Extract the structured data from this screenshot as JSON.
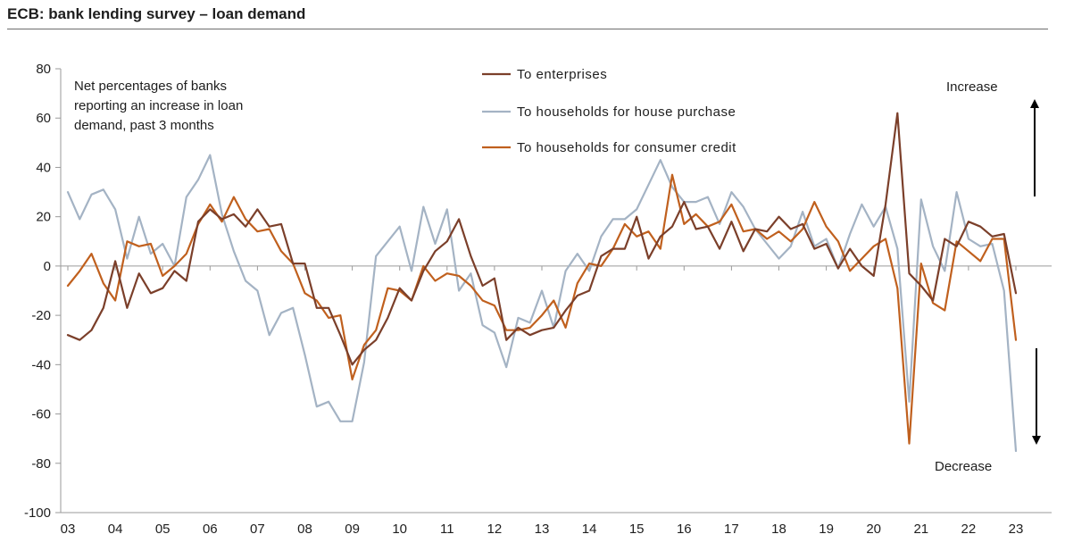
{
  "title": "ECB: bank lending survey – loan demand",
  "note_lines": [
    "Net percentages  of banks",
    "reporting  an increase  in loan",
    "demand, past 3 months"
  ],
  "increase_label": "Increase",
  "decrease_label": "Decrease",
  "colors": {
    "enterprises": "#7b3f2a",
    "house": "#a4b3c4",
    "consumer": "#c0601e",
    "axis": "#9a9a9a",
    "arrow": "#000000"
  },
  "chart_data": {
    "type": "line",
    "title": "ECB: bank lending survey – loan demand",
    "xlabel": "",
    "ylabel": "",
    "ylim": [
      -100,
      80
    ],
    "xlim": [
      2003,
      2023.5
    ],
    "x_tick_labels": [
      "03",
      "04",
      "05",
      "06",
      "07",
      "08",
      "09",
      "10",
      "11",
      "12",
      "13",
      "14",
      "15",
      "16",
      "17",
      "18",
      "19",
      "20",
      "21",
      "22",
      "23"
    ],
    "y_ticks": [
      80,
      60,
      40,
      20,
      0,
      -20,
      -40,
      -60,
      -80,
      -100
    ],
    "x": [
      2003.0,
      2003.25,
      2003.5,
      2003.75,
      2004.0,
      2004.25,
      2004.5,
      2004.75,
      2005.0,
      2005.25,
      2005.5,
      2005.75,
      2006.0,
      2006.25,
      2006.5,
      2006.75,
      2007.0,
      2007.25,
      2007.5,
      2007.75,
      2008.0,
      2008.25,
      2008.5,
      2008.75,
      2009.0,
      2009.25,
      2009.5,
      2009.75,
      2010.0,
      2010.25,
      2010.5,
      2010.75,
      2011.0,
      2011.25,
      2011.5,
      2011.75,
      2012.0,
      2012.25,
      2012.5,
      2012.75,
      2013.0,
      2013.25,
      2013.5,
      2013.75,
      2014.0,
      2014.25,
      2014.5,
      2014.75,
      2015.0,
      2015.25,
      2015.5,
      2015.75,
      2016.0,
      2016.25,
      2016.5,
      2016.75,
      2017.0,
      2017.25,
      2017.5,
      2017.75,
      2018.0,
      2018.25,
      2018.5,
      2018.75,
      2019.0,
      2019.25,
      2019.5,
      2019.75,
      2020.0,
      2020.25,
      2020.5,
      2020.75,
      2021.0,
      2021.25,
      2021.5,
      2021.75,
      2022.0,
      2022.25,
      2022.5,
      2022.75,
      2023.0
    ],
    "series": [
      {
        "name": "To enterprises",
        "color_key": "enterprises",
        "values": [
          -28,
          -30,
          -26,
          -17,
          2,
          -17,
          -3,
          -11,
          -9,
          -2,
          -6,
          18,
          23,
          19,
          21,
          16,
          23,
          16,
          17,
          1,
          1,
          -17,
          -17,
          -28,
          -40,
          -34,
          -30,
          -21,
          -9,
          -14,
          -2,
          6,
          10,
          19,
          4,
          -8,
          -5,
          -30,
          -25,
          -28,
          -26,
          -25,
          -18,
          -12,
          -10,
          4,
          7,
          7,
          20,
          3,
          12,
          16,
          26,
          15,
          16,
          7,
          18,
          6,
          15,
          14,
          20,
          15,
          17,
          7,
          9,
          -1,
          7,
          0,
          -4,
          25,
          62,
          -3,
          -8,
          -14,
          11,
          8,
          18,
          16,
          12,
          13,
          -11
        ]
      },
      {
        "name": "To households for house purchase",
        "color_key": "house",
        "values": [
          30,
          19,
          29,
          31,
          23,
          3,
          20,
          5,
          9,
          0,
          28,
          35,
          45,
          21,
          6,
          -6,
          -10,
          -28,
          -19,
          -17,
          -36,
          -57,
          -55,
          -63,
          -63,
          -39,
          4,
          10,
          16,
          -2,
          24,
          9,
          23,
          -10,
          -3,
          -24,
          -27,
          -41,
          -21,
          -23,
          -10,
          -25,
          -2,
          5,
          -2,
          12,
          19,
          19,
          23,
          33,
          43,
          32,
          26,
          26,
          28,
          17,
          30,
          24,
          15,
          9,
          3,
          8,
          22,
          8,
          11,
          -1,
          13,
          25,
          16,
          24,
          7,
          -55,
          27,
          8,
          -2,
          30,
          11,
          8,
          9,
          -10,
          -75
        ]
      },
      {
        "name": "To households for consumer credit",
        "color_key": "consumer",
        "values": [
          -8,
          -2,
          5,
          -7,
          -14,
          10,
          8,
          9,
          -4,
          0,
          5,
          17,
          25,
          18,
          28,
          19,
          14,
          15,
          6,
          1,
          -11,
          -14,
          -21,
          -20,
          -46,
          -32,
          -26,
          -9,
          -10,
          -14,
          0,
          -6,
          -3,
          -4,
          -8,
          -14,
          -16,
          -26,
          -26,
          -25,
          -20,
          -14,
          -25,
          -7,
          1,
          0,
          7,
          17,
          12,
          14,
          7,
          37,
          17,
          21,
          16,
          18,
          25,
          14,
          15,
          11,
          14,
          10,
          15,
          26,
          16,
          10,
          -2,
          3,
          8,
          11,
          -9,
          -72,
          1,
          -15,
          -18,
          10,
          6,
          2,
          11,
          11,
          -30
        ]
      }
    ]
  }
}
